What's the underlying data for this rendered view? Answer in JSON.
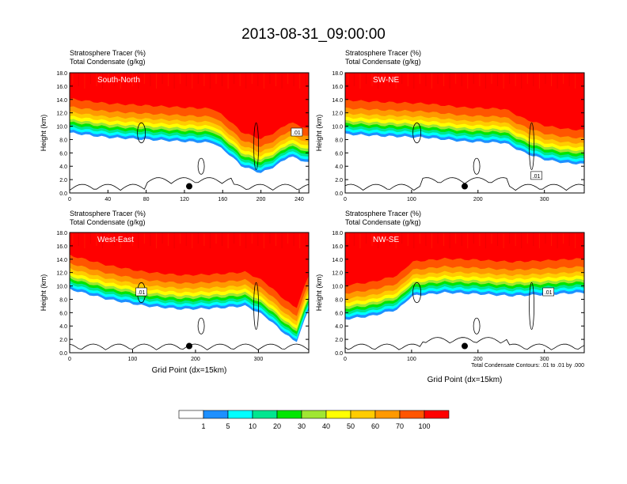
{
  "title": "2013-08-31_09:00:00",
  "legend": {
    "colors": [
      "#ffffff",
      "#1e90ff",
      "#00ffff",
      "#00e690",
      "#00e600",
      "#a0e632",
      "#ffff00",
      "#ffcc00",
      "#ff9900",
      "#ff5500",
      "#ff0000"
    ],
    "labels": [
      "1",
      "5",
      "10",
      "20",
      "30",
      "40",
      "50",
      "60",
      "70",
      "100"
    ]
  },
  "contour_note": "Total Condensate Contours: .01 to .01 by .000",
  "chart_data": [
    {
      "type": "heatmap",
      "panel_label": "South-North",
      "subtitle_line1": "Stratosphere Tracer   (%)",
      "subtitle_line2": "Total Condensate   (g/kg)",
      "ylabel": "Height (km)",
      "xlabel": "",
      "xlim": [
        0,
        250
      ],
      "ylim": [
        0,
        18
      ],
      "xticks": [
        "0",
        "40",
        "80",
        "120",
        "160",
        "200",
        "240"
      ],
      "yticks": [
        "0.0",
        "2.0",
        "4.0",
        "6.0",
        "8.0",
        "10.0",
        "12.0",
        "14.0",
        "16.0",
        "18.0"
      ],
      "tropopause_x": [
        0,
        40,
        80,
        120,
        150,
        165,
        180,
        200,
        215,
        230,
        250
      ],
      "tropopause_y": [
        14.5,
        13.8,
        13.5,
        13.2,
        13.0,
        11.5,
        9.5,
        8.5,
        9.5,
        11,
        10
      ],
      "contour_label": ".01",
      "marker": {
        "x": 125,
        "y": 1.0
      }
    },
    {
      "type": "heatmap",
      "panel_label": "SW-NE",
      "subtitle_line1": "Stratosphere Tracer   (%)",
      "subtitle_line2": "Total Condensate   (g/kg)",
      "ylabel": "Height (km)",
      "xlabel": "",
      "xlim": [
        0,
        360
      ],
      "ylim": [
        0,
        18
      ],
      "xticks": [
        "0",
        "100",
        "200",
        "300"
      ],
      "yticks": [
        "0.0",
        "2.0",
        "4.0",
        "6.0",
        "8.0",
        "10.0",
        "12.0",
        "14.0",
        "16.0",
        "18.0"
      ],
      "tropopause_x": [
        0,
        60,
        120,
        180,
        240,
        270,
        300,
        330,
        360
      ],
      "tropopause_y": [
        14.3,
        14.0,
        13.8,
        13.2,
        13.0,
        11.5,
        10.5,
        10.0,
        9.8
      ],
      "contour_label": ".01",
      "marker": {
        "x": 180,
        "y": 1.0
      }
    },
    {
      "type": "heatmap",
      "panel_label": "West-East",
      "subtitle_line1": "Stratosphere Tracer   (%)",
      "subtitle_line2": "Total Condensate   (g/kg)",
      "ylabel": "Height (km)",
      "xlabel": "Grid Point (dx=15km)",
      "xlim": [
        0,
        380
      ],
      "ylim": [
        0,
        18
      ],
      "xticks": [
        "0",
        "100",
        "200",
        "300"
      ],
      "yticks": [
        "0.0",
        "2.0",
        "4.0",
        "6.0",
        "8.0",
        "10.0",
        "12.0",
        "14.0",
        "16.0",
        "18.0"
      ],
      "tropopause_x": [
        0,
        60,
        120,
        180,
        240,
        280,
        310,
        340,
        360,
        380
      ],
      "tropopause_y": [
        15.0,
        13.5,
        12.5,
        12.0,
        12.2,
        12.5,
        11.0,
        8.5,
        7.0,
        12.0
      ],
      "contour_label": ".01",
      "marker": {
        "x": 190,
        "y": 1.0
      }
    },
    {
      "type": "heatmap",
      "panel_label": "NW-SE",
      "subtitle_line1": "Stratosphere Tracer   (%)",
      "subtitle_line2": "Total Condensate   (g/kg)",
      "ylabel": "Height (km)",
      "xlabel": "Grid Point (dx=15km)",
      "xlim": [
        0,
        360
      ],
      "ylim": [
        0,
        18
      ],
      "xticks": [
        "0",
        "100",
        "200",
        "300"
      ],
      "yticks": [
        "0.0",
        "2.0",
        "4.0",
        "6.0",
        "8.0",
        "10.0",
        "12.0",
        "14.0",
        "16.0",
        "18.0"
      ],
      "tropopause_x": [
        0,
        40,
        80,
        100,
        150,
        200,
        250,
        300,
        360
      ],
      "tropopause_y": [
        10.5,
        11.0,
        12.0,
        14.0,
        14.5,
        14.3,
        14.0,
        14.2,
        14.5
      ],
      "contour_label": ".01",
      "marker": {
        "x": 180,
        "y": 1.0
      }
    }
  ]
}
